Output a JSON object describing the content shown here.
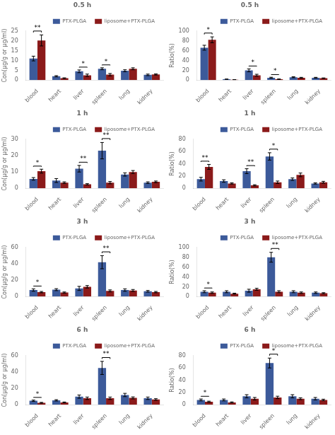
{
  "chart_data": [
    {
      "type": "bar",
      "title": "0.5 h",
      "y_label": "Con(μg/g or μg/ml)",
      "categories": [
        "blood",
        "heart",
        "liver",
        "spleen",
        "lung",
        "kidney"
      ],
      "series": [
        {
          "name": "PTX-PLGA",
          "color": "#3C5A9A",
          "values": [
            11.0,
            2.0,
            4.5,
            5.8,
            4.8,
            2.7
          ],
          "errors": [
            1.2,
            0.3,
            0.7,
            0.5,
            0.5,
            0.4
          ]
        },
        {
          "name": "liposome+PTX-PLGA",
          "color": "#8B1A1A",
          "values": [
            20.2,
            1.0,
            2.5,
            2.8,
            5.8,
            2.9
          ],
          "errors": [
            2.8,
            0.2,
            0.6,
            0.6,
            0.5,
            0.3
          ]
        }
      ],
      "ylim": [
        0,
        25
      ],
      "yticks": [
        0,
        5,
        10,
        15,
        20,
        25
      ],
      "grid": false,
      "legend": "upper right",
      "annotations": [
        {
          "category": "blood",
          "text": "**"
        },
        {
          "category": "liver",
          "text": "*"
        },
        {
          "category": "spleen",
          "text": "*"
        }
      ]
    },
    {
      "type": "bar",
      "title": "0.5 h",
      "y_label": "Ratio(%)",
      "categories": [
        "blood",
        "heart",
        "liver",
        "spleen",
        "lung",
        "kidney"
      ],
      "series": [
        {
          "name": "PTX-PLGA",
          "color": "#3C5A9A",
          "values": [
            66,
            2,
            20,
            5,
            6,
            5
          ],
          "errors": [
            5,
            0.3,
            3,
            1,
            1,
            0.8
          ]
        },
        {
          "name": "liposome+PTX-PLGA",
          "color": "#8B1A1A",
          "values": [
            82,
            1,
            10,
            2,
            5,
            4
          ],
          "errors": [
            6,
            0.2,
            2,
            0.5,
            0.8,
            0.6
          ]
        }
      ],
      "ylim": [
        0,
        100
      ],
      "yticks": [
        0,
        20,
        40,
        60,
        80,
        100
      ],
      "grid": false,
      "legend": "upper right",
      "annotations": [
        {
          "category": "blood",
          "text": "*"
        },
        {
          "category": "liver",
          "text": "*"
        },
        {
          "category": "spleen",
          "text": "*"
        }
      ]
    },
    {
      "type": "bar",
      "title": "1 h",
      "y_label": "Con(μg/g or μg/ml)",
      "categories": [
        "blood",
        "heart",
        "liver",
        "spleen",
        "lung",
        "kidney"
      ],
      "series": [
        {
          "name": "PTX-PLGA",
          "color": "#3C5A9A",
          "values": [
            5.8,
            4.8,
            12.0,
            23.0,
            8.5,
            3.5
          ],
          "errors": [
            0.8,
            1.2,
            2.0,
            5.0,
            1.0,
            0.5
          ]
        },
        {
          "name": "liposome+PTX-PLGA",
          "color": "#8B1A1A",
          "values": [
            10.5,
            3.5,
            2.5,
            3.5,
            10.0,
            4.0
          ],
          "errors": [
            1.2,
            0.5,
            0.4,
            0.7,
            0.9,
            0.5
          ]
        }
      ],
      "ylim": [
        0,
        30
      ],
      "yticks": [
        0,
        10,
        20,
        30
      ],
      "grid": false,
      "legend": "upper right",
      "annotations": [
        {
          "category": "blood",
          "text": "*"
        },
        {
          "category": "liver",
          "text": "**"
        },
        {
          "category": "spleen",
          "text": "**"
        }
      ]
    },
    {
      "type": "bar",
      "title": "1 h",
      "y_label": "Ratio(%)",
      "categories": [
        "blood",
        "heart",
        "liver",
        "spleen",
        "lung",
        "kidney"
      ],
      "series": [
        {
          "name": "PTX-PLGA",
          "color": "#3C5A9A",
          "values": [
            15,
            12,
            28,
            52,
            15,
            8
          ],
          "errors": [
            3,
            2,
            4,
            6,
            2,
            1
          ]
        },
        {
          "name": "liposome+PTX-PLGA",
          "color": "#8B1A1A",
          "values": [
            35,
            8,
            5,
            10,
            22,
            10
          ],
          "errors": [
            4,
            1,
            1,
            2,
            3,
            1.5
          ]
        }
      ],
      "ylim": [
        0,
        80
      ],
      "yticks": [
        0,
        20,
        40,
        60,
        80
      ],
      "grid": false,
      "legend": "upper right",
      "annotations": [
        {
          "category": "blood",
          "text": "**"
        },
        {
          "category": "liver",
          "text": "**"
        },
        {
          "category": "spleen",
          "text": "*"
        }
      ]
    },
    {
      "type": "bar",
      "title": "3 h",
      "y_label": "Con(μg/g or μg/ml)",
      "categories": [
        "blood",
        "heart",
        "liver",
        "spleen",
        "lung",
        "kidney"
      ],
      "series": [
        {
          "name": "PTX-PLGA",
          "color": "#3C5A9A",
          "values": [
            8.0,
            8.5,
            10.0,
            42.0,
            8.0,
            6.5
          ],
          "errors": [
            1.5,
            1.2,
            2.5,
            8.0,
            1.5,
            1.0
          ]
        },
        {
          "name": "liposome+PTX-PLGA",
          "color": "#8B1A1A",
          "values": [
            5.5,
            5.0,
            12.0,
            7.0,
            7.5,
            5.5
          ],
          "errors": [
            0.8,
            0.7,
            1.5,
            1.2,
            1.2,
            0.8
          ]
        }
      ],
      "ylim": [
        0,
        60
      ],
      "yticks": [
        0,
        20,
        40,
        60
      ],
      "grid": false,
      "legend": "upper right",
      "annotations": [
        {
          "category": "blood",
          "text": "*"
        },
        {
          "category": "spleen",
          "text": "**"
        }
      ]
    },
    {
      "type": "bar",
      "title": "3 h",
      "y_label": "Ratio(%)",
      "categories": [
        "blood",
        "heart",
        "liver",
        "spleen",
        "lung",
        "kidney"
      ],
      "series": [
        {
          "name": "PTX-PLGA",
          "color": "#3C5A9A",
          "values": [
            10,
            10,
            12,
            80,
            10,
            8
          ],
          "errors": [
            2,
            2,
            3,
            10,
            2,
            1.5
          ]
        },
        {
          "name": "liposome+PTX-PLGA",
          "color": "#8B1A1A",
          "values": [
            8,
            6,
            15,
            10,
            8,
            7
          ],
          "errors": [
            1.5,
            1,
            2,
            2,
            1.5,
            1
          ]
        }
      ],
      "ylim": [
        0,
        100
      ],
      "yticks": [
        0,
        20,
        40,
        60,
        80,
        100
      ],
      "grid": false,
      "legend": "upper right",
      "annotations": [
        {
          "category": "blood",
          "text": "*"
        },
        {
          "category": "spleen",
          "text": "**"
        }
      ]
    },
    {
      "type": "bar",
      "title": "6 h",
      "y_label": "Con(μg/g or μg/ml)",
      "categories": [
        "blood",
        "heart",
        "liver",
        "spleen",
        "lung",
        "kidney"
      ],
      "series": [
        {
          "name": "PTX-PLGA",
          "color": "#3C5A9A",
          "values": [
            5.0,
            5.5,
            10.0,
            45.0,
            12.0,
            8.0
          ],
          "errors": [
            0.8,
            0.8,
            2.0,
            8.0,
            2.0,
            1.5
          ]
        },
        {
          "name": "liposome+PTX-PLGA",
          "color": "#8B1A1A",
          "values": [
            2.5,
            3.0,
            8.0,
            8.0,
            8.5,
            6.5
          ],
          "errors": [
            0.5,
            0.5,
            1.5,
            1.5,
            1.2,
            1.0
          ]
        }
      ],
      "ylim": [
        0,
        60
      ],
      "yticks": [
        0,
        20,
        40,
        60
      ],
      "grid": false,
      "legend": "upper right",
      "annotations": [
        {
          "category": "blood",
          "text": "*"
        },
        {
          "category": "spleen",
          "text": "**"
        }
      ]
    },
    {
      "type": "bar",
      "title": "6 h",
      "y_label": "Ratio(%)",
      "categories": [
        "blood",
        "heart",
        "liver",
        "spleen",
        "lung",
        "kidney"
      ],
      "series": [
        {
          "name": "PTX-PLGA",
          "color": "#3C5A9A",
          "values": [
            8,
            8,
            14,
            68,
            14,
            10
          ],
          "errors": [
            1.5,
            1.5,
            2.5,
            8,
            2.5,
            2
          ]
        },
        {
          "name": "liposome+PTX-PLGA",
          "color": "#8B1A1A",
          "values": [
            5,
            4,
            10,
            12,
            10,
            8
          ],
          "errors": [
            1,
            0.8,
            2,
            2,
            1.5,
            1.2
          ]
        }
      ],
      "ylim": [
        0,
        80
      ],
      "yticks": [
        0,
        20,
        40,
        60,
        80
      ],
      "grid": false,
      "legend": "upper right",
      "annotations": [
        {
          "category": "blood",
          "text": "*"
        },
        {
          "category": "spleen",
          "text": "*"
        }
      ]
    }
  ]
}
